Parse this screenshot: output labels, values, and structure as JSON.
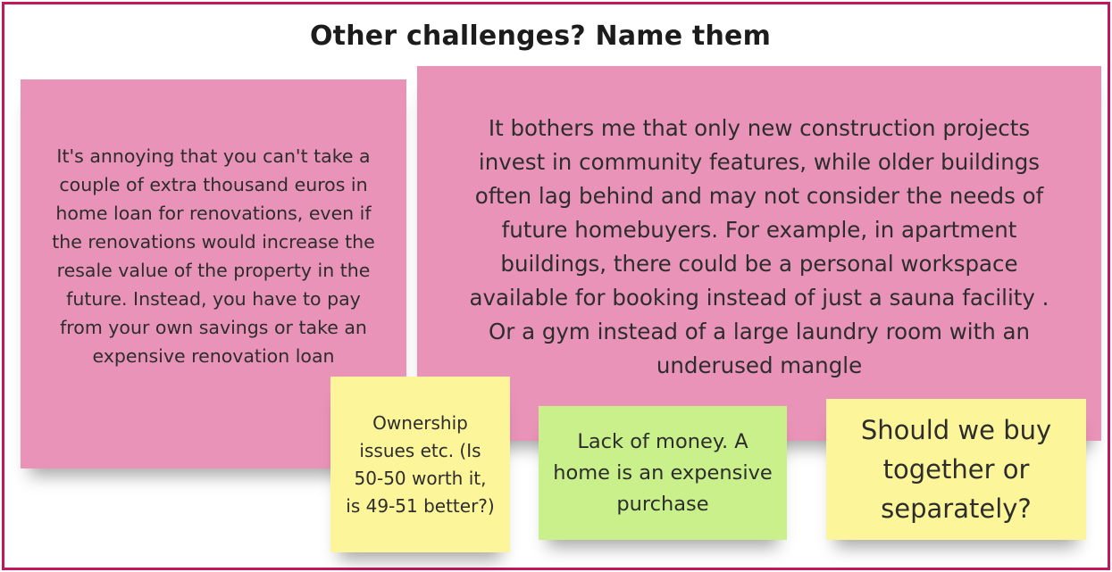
{
  "title": "Other challenges? Name them",
  "colors": {
    "frame": "#c2185b",
    "pink_note": "#ea93b9",
    "yellow_note": "#fcf59a",
    "green_note": "#c9f08a"
  },
  "notes": [
    {
      "color": "pink",
      "text": "It's annoying that you can't take a couple of extra thousand euros in home loan for renovations, even if the renovations would increase the resale value of the property in the future. Instead, you have to pay from your own savings or take an expensive renovation loan"
    },
    {
      "color": "pink",
      "text": "It bothers me that only new construction projects invest in community features, while older buildings often lag behind and may not consider the needs of future homebuyers. For example, in apartment buildings, there could be a personal workspace available for booking instead of just a sauna facility . Or a gym instead of a large laundry room with an underused mangle"
    },
    {
      "color": "yellow",
      "text": "Ownership issues etc. (Is 50-50 worth it, is 49-51 better?)"
    },
    {
      "color": "green",
      "text": "Lack of money. A home is an expensive purchase"
    },
    {
      "color": "yellow",
      "text": "Should we buy together or separately?"
    }
  ]
}
